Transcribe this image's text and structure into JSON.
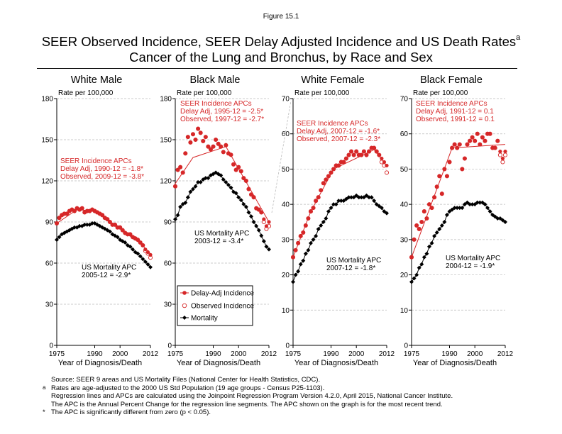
{
  "figure_label": "Figure 15.1",
  "title_line1": "SEER Observed Incidence, SEER Delay Adjusted Incidence and US Death Rates",
  "title_superscript": "a",
  "title_line2": "Cancer of the Lung and Bronchus, by Race and Sex",
  "colors": {
    "incidence": "#d62728",
    "mortality": "#000000",
    "grid": "#bbbbbb"
  },
  "legend": {
    "delay_adj": "Delay-Adj Incidence",
    "observed": "Observed Incidence",
    "mortality": "Mortality"
  },
  "footnotes": [
    {
      "mark": "",
      "text": "Source: SEER 9 areas and US Mortality Files (National Center for Health Statistics, CDC)."
    },
    {
      "mark": "a",
      "text": "Rates are age-adjusted to the 2000 US Std Population (19 age groups - Census P25-1103)."
    },
    {
      "mark": "",
      "text": "Regression lines and APCs are calculated using the Joinpoint Regression Program Version 4.2.0, April 2015, National Cancer Institute."
    },
    {
      "mark": "",
      "text": "The APC is the Annual Percent Change for the regression line segments. The APC shown on the graph is for the most recent trend."
    },
    {
      "mark": "*",
      "text": "The APC is significantly different from zero (p < 0.05)."
    }
  ],
  "chart_data": [
    {
      "type": "scatter",
      "title": "White Male",
      "ylabel": "Rate per 100,000",
      "xlabel": "Year of Diagnosis/Death",
      "xlim": [
        1975,
        2012
      ],
      "ylim": [
        0,
        180
      ],
      "xticks": [
        1975,
        1990,
        2000,
        2012
      ],
      "yticks": [
        0,
        30,
        60,
        90,
        120,
        150,
        180
      ],
      "grid": "horizontal dashed",
      "incidence_annotation": [
        "SEER Incidence APCs",
        "Delay Adj, 1990-12 = -1.8*",
        "Observed, 2009-12 = -3.8*"
      ],
      "mortality_annotation": [
        "US Mortality APC",
        "2005-12 = -2.9*"
      ],
      "delay_adj": {
        "x": [
          1975,
          1976,
          1977,
          1978,
          1979,
          1980,
          1981,
          1982,
          1983,
          1984,
          1985,
          1986,
          1987,
          1988,
          1989,
          1990,
          1991,
          1992,
          1993,
          1994,
          1995,
          1996,
          1997,
          1998,
          1999,
          2000,
          2001,
          2002,
          2003,
          2004,
          2005,
          2006,
          2007,
          2008,
          2009,
          2010,
          2011,
          2012
        ],
        "y": [
          89,
          93,
          95,
          96,
          96,
          98,
          99,
          98,
          100,
          99,
          100,
          97,
          98,
          98,
          99,
          98,
          97,
          96,
          95,
          93,
          92,
          90,
          88,
          88,
          86,
          86,
          84,
          82,
          81,
          81,
          79,
          78,
          77,
          75,
          73,
          70,
          68,
          66
        ]
      },
      "observed": {
        "x": [
          1975,
          1976,
          1977,
          1978,
          1979,
          1980,
          1981,
          1982,
          1983,
          1984,
          1985,
          1986,
          1987,
          1988,
          1989,
          1990,
          1991,
          1992,
          1993,
          1994,
          1995,
          1996,
          1997,
          1998,
          1999,
          2000,
          2001,
          2002,
          2003,
          2004,
          2005,
          2006,
          2007,
          2008,
          2009,
          2010,
          2011,
          2012
        ],
        "y": [
          89,
          93,
          95,
          96,
          96,
          98,
          99,
          98,
          100,
          99,
          100,
          97,
          98,
          98,
          99,
          98,
          97,
          96,
          95,
          93,
          92,
          90,
          88,
          88,
          86,
          86,
          84,
          82,
          81,
          81,
          79,
          78,
          77,
          75,
          73,
          69,
          67,
          64
        ]
      },
      "mortality": {
        "x": [
          1975,
          1976,
          1977,
          1978,
          1979,
          1980,
          1981,
          1982,
          1983,
          1984,
          1985,
          1986,
          1987,
          1988,
          1989,
          1990,
          1991,
          1992,
          1993,
          1994,
          1995,
          1996,
          1997,
          1998,
          1999,
          2000,
          2001,
          2002,
          2003,
          2004,
          2005,
          2006,
          2007,
          2008,
          2009,
          2010,
          2011,
          2012
        ],
        "y": [
          77,
          79,
          81,
          82,
          83,
          84,
          85,
          86,
          86,
          87,
          87,
          88,
          88,
          88,
          89,
          89,
          88,
          87,
          86,
          85,
          84,
          83,
          81,
          80,
          79,
          77,
          76,
          75,
          73,
          72,
          70,
          68,
          67,
          65,
          63,
          61,
          59,
          57
        ]
      },
      "joinpoint": {
        "x": [
          1975,
          1983,
          1990,
          2009,
          2012
        ],
        "y": [
          89,
          99,
          98,
          73,
          65
        ]
      }
    },
    {
      "type": "scatter",
      "title": "Black Male",
      "ylabel": "Rate per 100,000",
      "xlabel": "Year of Diagnosis/Death",
      "xlim": [
        1975,
        2012
      ],
      "ylim": [
        0,
        180
      ],
      "xticks": [
        1975,
        1990,
        2000,
        2012
      ],
      "yticks": [
        0,
        30,
        60,
        90,
        120,
        150,
        180
      ],
      "grid": "horizontal dashed",
      "incidence_annotation": [
        "SEER Incidence APCs",
        "Delay Adj, 1995-12 = -2.5*",
        "Observed, 1997-12 = -2.7*"
      ],
      "mortality_annotation": [
        "US Mortality APC",
        "2003-12 = -3.4*"
      ],
      "delay_adj": {
        "x": [
          1975,
          1976,
          1977,
          1978,
          1979,
          1980,
          1981,
          1982,
          1983,
          1984,
          1985,
          1986,
          1987,
          1988,
          1989,
          1990,
          1991,
          1992,
          1993,
          1994,
          1995,
          1996,
          1997,
          1998,
          1999,
          2000,
          2001,
          2002,
          2003,
          2004,
          2005,
          2006,
          2007,
          2008,
          2009,
          2010,
          2011,
          2012
        ],
        "y": [
          116,
          128,
          130,
          126,
          140,
          152,
          148,
          154,
          150,
          158,
          155,
          149,
          152,
          145,
          143,
          145,
          150,
          147,
          145,
          141,
          146,
          140,
          139,
          132,
          128,
          130,
          127,
          122,
          120,
          114,
          110,
          108,
          100,
          99,
          97,
          92,
          87,
          90
        ]
      },
      "observed": {
        "x": [
          1975,
          1976,
          1977,
          1978,
          1979,
          1980,
          1981,
          1982,
          1983,
          1984,
          1985,
          1986,
          1987,
          1988,
          1989,
          1990,
          1991,
          1992,
          1993,
          1994,
          1995,
          1996,
          1997,
          1998,
          1999,
          2000,
          2001,
          2002,
          2003,
          2004,
          2005,
          2006,
          2007,
          2008,
          2009,
          2010,
          2011,
          2012
        ],
        "y": [
          116,
          128,
          130,
          126,
          140,
          152,
          148,
          154,
          150,
          158,
          155,
          149,
          152,
          145,
          143,
          145,
          150,
          147,
          145,
          141,
          146,
          140,
          139,
          132,
          128,
          130,
          127,
          122,
          120,
          114,
          110,
          108,
          100,
          99,
          97,
          90,
          85,
          87
        ]
      },
      "mortality": {
        "x": [
          1975,
          1976,
          1977,
          1978,
          1979,
          1980,
          1981,
          1982,
          1983,
          1984,
          1985,
          1986,
          1987,
          1988,
          1989,
          1990,
          1991,
          1992,
          1993,
          1994,
          1995,
          1996,
          1997,
          1998,
          1999,
          2000,
          2001,
          2002,
          2003,
          2004,
          2005,
          2006,
          2007,
          2008,
          2009,
          2010,
          2011,
          2012
        ],
        "y": [
          92,
          95,
          101,
          103,
          104,
          108,
          112,
          114,
          116,
          119,
          119,
          121,
          122,
          122,
          124,
          125,
          126,
          125,
          124,
          121,
          119,
          117,
          115,
          112,
          111,
          108,
          106,
          103,
          101,
          97,
          94,
          90,
          87,
          84,
          80,
          76,
          72,
          70
        ]
      },
      "joinpoint": {
        "x": [
          1975,
          1982,
          1995,
          2012
        ],
        "y": [
          118,
          137,
          145,
          90
        ]
      }
    },
    {
      "type": "scatter",
      "title": "White Female",
      "ylabel": "Rate per 100,000",
      "xlabel": "Year of Diagnosis/Death",
      "xlim": [
        1975,
        2012
      ],
      "ylim": [
        0,
        70
      ],
      "xticks": [
        1975,
        1990,
        2000,
        2012
      ],
      "yticks": [
        0,
        10,
        20,
        30,
        40,
        50,
        60,
        70
      ],
      "grid": "horizontal dashed",
      "incidence_annotation": [
        "SEER Incidence APCs",
        "Delay Adj, 2007-12 = -1.6*",
        "Observed, 2007-12 = -2.3*"
      ],
      "mortality_annotation": [
        "US Mortality APC",
        "2007-12 = -1.8*"
      ],
      "delay_adj": {
        "x": [
          1975,
          1976,
          1977,
          1978,
          1979,
          1980,
          1981,
          1982,
          1983,
          1984,
          1985,
          1986,
          1987,
          1988,
          1989,
          1990,
          1991,
          1992,
          1993,
          1994,
          1995,
          1996,
          1997,
          1998,
          1999,
          2000,
          2001,
          2002,
          2003,
          2004,
          2005,
          2006,
          2007,
          2008,
          2009,
          2010,
          2011,
          2012
        ],
        "y": [
          25,
          27,
          29,
          31,
          32,
          34,
          36,
          38,
          39,
          41,
          42,
          44,
          46,
          47,
          48,
          49,
          50,
          51,
          51,
          52,
          52,
          53,
          54,
          55,
          54,
          55,
          54,
          54,
          55,
          54,
          55,
          56,
          56,
          55,
          54,
          53,
          52,
          51
        ]
      },
      "observed": {
        "x": [
          1975,
          1976,
          1977,
          1978,
          1979,
          1980,
          1981,
          1982,
          1983,
          1984,
          1985,
          1986,
          1987,
          1988,
          1989,
          1990,
          1991,
          1992,
          1993,
          1994,
          1995,
          1996,
          1997,
          1998,
          1999,
          2000,
          2001,
          2002,
          2003,
          2004,
          2005,
          2006,
          2007,
          2008,
          2009,
          2010,
          2011,
          2012
        ],
        "y": [
          25,
          27,
          29,
          31,
          32,
          34,
          36,
          38,
          39,
          41,
          42,
          44,
          46,
          47,
          48,
          49,
          50,
          51,
          51,
          52,
          52,
          53,
          54,
          55,
          54,
          55,
          54,
          54,
          55,
          54,
          55,
          56,
          56,
          55,
          54,
          52,
          51,
          49
        ]
      },
      "mortality": {
        "x": [
          1975,
          1976,
          1977,
          1978,
          1979,
          1980,
          1981,
          1982,
          1983,
          1984,
          1985,
          1986,
          1987,
          1988,
          1989,
          1990,
          1991,
          1992,
          1993,
          1994,
          1995,
          1996,
          1997,
          1998,
          1999,
          2000,
          2001,
          2002,
          2003,
          2004,
          2005,
          2006,
          2007,
          2008,
          2009,
          2010,
          2011,
          2012
        ],
        "y": [
          18,
          20,
          21,
          23,
          24,
          26,
          27,
          29,
          30,
          31,
          33,
          34,
          35,
          36,
          38,
          39,
          40,
          40,
          41,
          41,
          41,
          41.5,
          42,
          42,
          42,
          42.5,
          42,
          42,
          42,
          42.5,
          42,
          42,
          41,
          40,
          39.5,
          39,
          38,
          37.5
        ]
      },
      "joinpoint": {
        "x": [
          1975,
          1982,
          1991,
          2007,
          2012
        ],
        "y": [
          25,
          38,
          50,
          55.5,
          51
        ]
      }
    },
    {
      "type": "scatter",
      "title": "Black Female",
      "ylabel": "Rate per 100,000",
      "xlabel": "Year of Diagnosis/Death",
      "xlim": [
        1975,
        2012
      ],
      "ylim": [
        0,
        70
      ],
      "xticks": [
        1975,
        1990,
        2000,
        2012
      ],
      "yticks": [
        0,
        10,
        20,
        30,
        40,
        50,
        60,
        70
      ],
      "grid": "horizontal dashed",
      "incidence_annotation": [
        "SEER Incidence APCs",
        "Delay Adj, 1991-12 = 0.1",
        "Observed, 1991-12 = 0.1"
      ],
      "mortality_annotation": [
        "US Mortality APC",
        "2004-12 = -1.9*"
      ],
      "delay_adj": {
        "x": [
          1975,
          1976,
          1977,
          1978,
          1979,
          1980,
          1981,
          1982,
          1983,
          1984,
          1985,
          1986,
          1987,
          1988,
          1989,
          1990,
          1991,
          1992,
          1993,
          1994,
          1995,
          1996,
          1997,
          1998,
          1999,
          2000,
          2001,
          2002,
          2003,
          2004,
          2005,
          2006,
          2007,
          2008,
          2009,
          2010,
          2011,
          2012
        ],
        "y": [
          25,
          30,
          34,
          33,
          35,
          38,
          36,
          40,
          39,
          42,
          45,
          48,
          43,
          50,
          48,
          52,
          56,
          57,
          56,
          57,
          50,
          53,
          57,
          58,
          59,
          58,
          60,
          57,
          59,
          58,
          60,
          60,
          56,
          56,
          58,
          55,
          53,
          55
        ]
      },
      "observed": {
        "x": [
          1975,
          1976,
          1977,
          1978,
          1979,
          1980,
          1981,
          1982,
          1983,
          1984,
          1985,
          1986,
          1987,
          1988,
          1989,
          1990,
          1991,
          1992,
          1993,
          1994,
          1995,
          1996,
          1997,
          1998,
          1999,
          2000,
          2001,
          2002,
          2003,
          2004,
          2005,
          2006,
          2007,
          2008,
          2009,
          2010,
          2011,
          2012
        ],
        "y": [
          25,
          30,
          34,
          33,
          35,
          38,
          36,
          40,
          39,
          42,
          45,
          48,
          43,
          50,
          48,
          52,
          56,
          57,
          56,
          57,
          50,
          53,
          57,
          58,
          59,
          58,
          60,
          57,
          59,
          58,
          60,
          60,
          56,
          56,
          58,
          54,
          52,
          54
        ]
      },
      "mortality": {
        "x": [
          1975,
          1976,
          1977,
          1978,
          1979,
          1980,
          1981,
          1982,
          1983,
          1984,
          1985,
          1986,
          1987,
          1988,
          1989,
          1990,
          1991,
          1992,
          1993,
          1994,
          1995,
          1996,
          1997,
          1998,
          1999,
          2000,
          2001,
          2002,
          2003,
          2004,
          2005,
          2006,
          2007,
          2008,
          2009,
          2010,
          2011,
          2012
        ],
        "y": [
          18,
          19,
          20,
          22,
          23,
          25,
          26,
          28,
          29,
          31,
          32,
          33,
          34,
          35,
          37,
          38,
          38.5,
          39,
          39,
          39,
          39,
          40,
          40.5,
          40,
          40,
          40,
          40.5,
          40.5,
          40.5,
          40,
          39,
          38,
          37,
          36.5,
          36,
          36,
          35.5,
          35
        ]
      },
      "joinpoint": {
        "x": [
          1975,
          1991,
          2012
        ],
        "y": [
          25,
          56,
          57
        ]
      }
    }
  ]
}
